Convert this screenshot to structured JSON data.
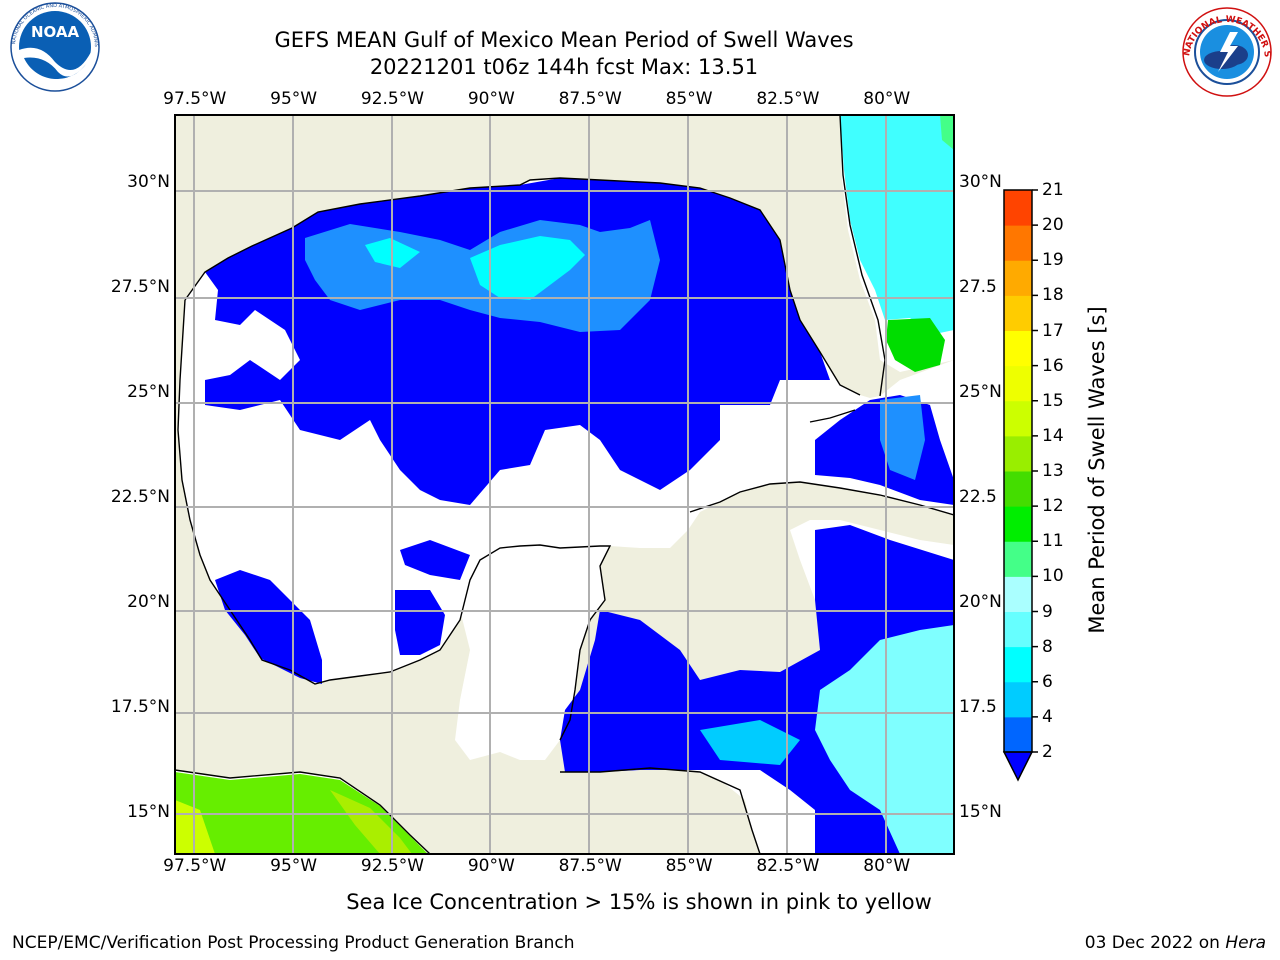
{
  "header": {
    "title_line1": "GEFS MEAN Gulf of Mexico Mean Period of Swell Waves",
    "title_line2": "20221201 t06z 144h fcst   Max: 13.51"
  },
  "logos": {
    "left": {
      "name": "noaa-logo",
      "text": "NOAA",
      "ring_text": "NATIONAL OCEANIC AND ATMOSPHERIC ADMINISTRATION · U.S. DEPARTMENT OF COMMERCE"
    },
    "right": {
      "name": "nws-logo",
      "ring_text": "NATIONAL WEATHER SERVICE"
    }
  },
  "map": {
    "type": "filled-contour-map",
    "region": "Gulf of Mexico",
    "lon_range": [
      -98,
      -78.3
    ],
    "lat_range": [
      14,
      31.6
    ],
    "grid": true,
    "land_color": "#efefde",
    "ocean_background": "#ffffff",
    "lon_ticks": [
      "97.5°W",
      "95°W",
      "92.5°W",
      "90°W",
      "87.5°W",
      "85°W",
      "82.5°W",
      "80°W"
    ],
    "lon_tick_values": [
      -97.5,
      -95,
      -92.5,
      -90,
      -87.5,
      -85,
      -82.5,
      -80
    ],
    "lat_ticks_left": [
      "30°N",
      "27.5°N",
      "25°N",
      "22.5°N",
      "20°N",
      "17.5°N",
      "15°N"
    ],
    "lat_ticks_right": [
      "30°N",
      "27.5",
      "25°N",
      "22.5",
      "20°N",
      "17.5",
      "15°N"
    ],
    "lat_tick_values": [
      30,
      27.5,
      25,
      22.5,
      20,
      17.5,
      15
    ],
    "regions": [
      {
        "name": "northern-gulf",
        "period_band": "2-4",
        "color": "#0000ff"
      },
      {
        "name": "north-central-gulf",
        "period_band": "4-6",
        "color": "#1e90ff"
      },
      {
        "name": "mississippi-plume",
        "period_band": "6-8",
        "color": "#00ffff"
      },
      {
        "name": "atlantic-east-florida",
        "period_band": "6-9",
        "color": "#40ffff"
      },
      {
        "name": "bahamas-patch",
        "period_band": "9-11",
        "color": "#00dd00"
      },
      {
        "name": "caribbean-west",
        "period_band": "2-4",
        "color": "#0000ff"
      },
      {
        "name": "caribbean-south",
        "period_band": "6-8",
        "color": "#7fffff"
      },
      {
        "name": "pacific-southwest",
        "period_band": "10-13",
        "color": "#66ee00"
      }
    ]
  },
  "colorbar": {
    "label": "Mean Period of Swell Waves [s]",
    "levels": [
      2,
      4,
      6,
      8,
      9,
      10,
      11,
      12,
      13,
      14,
      15,
      16,
      17,
      18,
      19,
      20,
      21
    ],
    "tick_labels": [
      "2",
      "4",
      "6",
      "8",
      "9",
      "10",
      "11",
      "12",
      "13",
      "14",
      "15",
      "16",
      "17",
      "18",
      "19",
      "20",
      "21"
    ],
    "colors": [
      "#0066ff",
      "#00ccff",
      "#00ffff",
      "#66ffff",
      "#aaffff",
      "#44ff88",
      "#00ee00",
      "#44dd00",
      "#99ee00",
      "#ccff00",
      "#eeff00",
      "#ffff00",
      "#ffcc00",
      "#ffaa00",
      "#ff7700",
      "#ff4400",
      "#ff1100",
      "#ff0000"
    ],
    "extend": "min",
    "extend_color": "#0000ff"
  },
  "note": "Sea Ice Concentration > 15% is shown in pink to yellow",
  "footer": {
    "left": "NCEP/EMC/Verification Post Processing Product Generation Branch",
    "right_date": "03 Dec 2022 on ",
    "right_host": "Hera"
  }
}
